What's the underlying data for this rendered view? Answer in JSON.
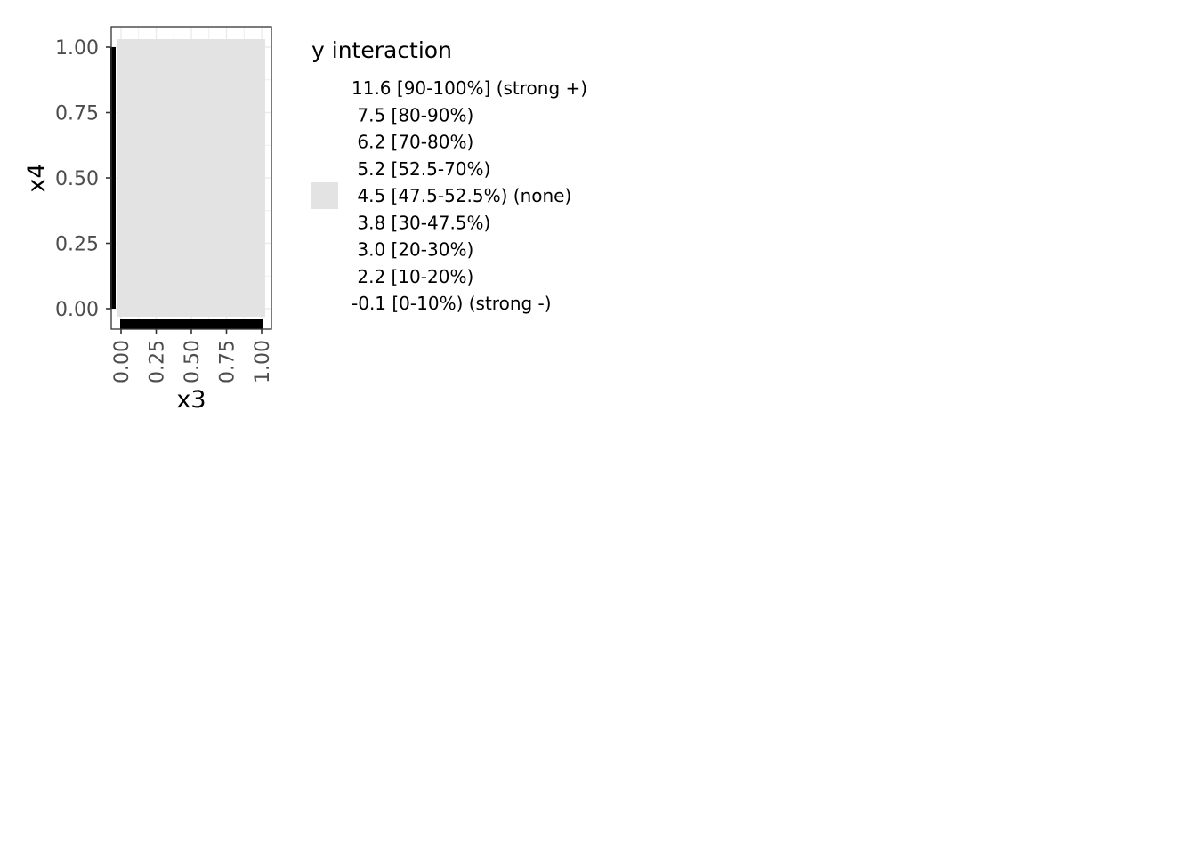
{
  "chart_data": {
    "type": "heatmap",
    "title": "",
    "xlabel": "x3",
    "ylabel": "x4",
    "xlim": [
      0,
      1
    ],
    "ylim": [
      0,
      1
    ],
    "x_ticks": [
      0.0,
      0.25,
      0.5,
      0.75,
      1.0
    ],
    "y_ticks": [
      0.0,
      0.25,
      0.5,
      0.75,
      1.0
    ],
    "x_tick_labels": [
      "0.00",
      "0.25",
      "0.50",
      "0.75",
      "1.00"
    ],
    "y_tick_labels": [
      "0.00",
      "0.25",
      "0.50",
      "0.75",
      "1.00"
    ],
    "grid": true,
    "rug": {
      "x": true,
      "y": true,
      "color": "#000000"
    },
    "cells": [
      {
        "x": [
          0,
          1
        ],
        "y": [
          0,
          1
        ],
        "fill": "#e3e3e3",
        "level": "4.5 [47.5-52.5%) (none)"
      }
    ],
    "legend": {
      "title": "y interaction",
      "position": "right",
      "entries": [
        {
          "label": "11.6 [90-100%] (strong +)",
          "color": null
        },
        {
          "label": " 7.5 [80-90%)",
          "color": null
        },
        {
          "label": " 6.2 [70-80%)",
          "color": null
        },
        {
          "label": " 5.2 [52.5-70%)",
          "color": null
        },
        {
          "label": " 4.5 [47.5-52.5%) (none)",
          "color": "#e3e3e3"
        },
        {
          "label": " 3.8 [30-47.5%)",
          "color": null
        },
        {
          "label": " 3.0 [20-30%)",
          "color": null
        },
        {
          "label": " 2.2 [10-20%)",
          "color": null
        },
        {
          "label": "-0.1 [0-10%) (strong -)",
          "color": null
        }
      ]
    }
  },
  "colors": {
    "panel_border": "#333333",
    "grid": "#ebebeb",
    "tick_text": "#4d4d4d",
    "cell_fill": "#e3e3e3",
    "rug": "#000000"
  }
}
